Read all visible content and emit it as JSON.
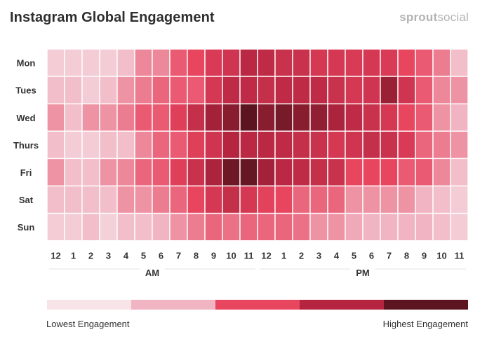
{
  "header": {
    "title": "Instagram Global Engagement",
    "brand_bold": "sprout",
    "brand_light": "social"
  },
  "chart_data": {
    "type": "heatmap",
    "title": "Instagram Global Engagement",
    "rows": [
      "Mon",
      "Tues",
      "Wed",
      "Thurs",
      "Fri",
      "Sat",
      "Sun"
    ],
    "columns": [
      "12",
      "1",
      "2",
      "3",
      "4",
      "5",
      "6",
      "7",
      "8",
      "9",
      "10",
      "11",
      "12",
      "1",
      "2",
      "3",
      "4",
      "5",
      "6",
      "7",
      "8",
      "9",
      "10",
      "11"
    ],
    "periods": [
      {
        "label": "AM",
        "from": 0,
        "to": 11
      },
      {
        "label": "PM",
        "from": 12,
        "to": 23
      }
    ],
    "scale": [
      "#f7e4e9",
      "#f0b4c2",
      "#e8455f",
      "#b52540",
      "#5c1520"
    ],
    "values": [
      [
        0.5,
        0.5,
        0.5,
        0.5,
        0.8,
        1.4,
        1.4,
        1.8,
        2.0,
        2.3,
        2.5,
        2.9,
        2.8,
        2.6,
        2.6,
        2.4,
        2.4,
        2.3,
        2.4,
        2.3,
        2.0,
        1.8,
        1.5,
        0.8
      ],
      [
        0.8,
        0.8,
        0.5,
        0.8,
        1.3,
        1.5,
        1.7,
        1.8,
        1.8,
        2.4,
        2.8,
        2.8,
        2.7,
        2.8,
        2.8,
        2.8,
        2.6,
        2.4,
        2.5,
        3.3,
        2.5,
        1.8,
        1.4,
        1.3
      ],
      [
        1.3,
        0.8,
        1.3,
        1.3,
        1.5,
        1.8,
        1.8,
        2.2,
        2.7,
        3.2,
        3.5,
        4.0,
        3.5,
        3.7,
        3.5,
        3.4,
        3.1,
        2.8,
        2.6,
        2.4,
        2.0,
        1.8,
        1.3,
        1.0
      ],
      [
        0.8,
        0.5,
        0.5,
        0.8,
        0.8,
        1.4,
        1.7,
        1.8,
        2.2,
        2.5,
        3.0,
        2.9,
        2.9,
        2.8,
        2.7,
        2.6,
        2.4,
        2.5,
        2.7,
        2.6,
        2.3,
        1.7,
        1.5,
        1.3
      ],
      [
        1.3,
        0.8,
        0.8,
        1.3,
        1.4,
        1.7,
        1.8,
        2.2,
        2.6,
        3.1,
        3.8,
        3.9,
        3.2,
        2.9,
        2.8,
        2.7,
        2.6,
        2.0,
        2.0,
        2.0,
        1.8,
        1.8,
        1.4,
        0.8
      ],
      [
        0.8,
        0.8,
        0.8,
        0.8,
        1.3,
        1.3,
        1.5,
        1.7,
        2.0,
        2.4,
        2.7,
        2.4,
        2.1,
        2.0,
        1.7,
        1.7,
        1.7,
        1.3,
        1.3,
        1.3,
        1.3,
        1.0,
        0.8,
        0.5
      ],
      [
        0.5,
        0.5,
        0.8,
        0.4,
        0.8,
        0.8,
        1.0,
        1.3,
        1.5,
        1.7,
        1.6,
        1.7,
        1.7,
        1.7,
        1.6,
        1.3,
        1.3,
        1.1,
        1.0,
        1.0,
        1.0,
        1.0,
        0.8,
        0.5
      ]
    ],
    "legend": {
      "low_label": "Lowest Engagement",
      "high_label": "Highest Engagement"
    }
  }
}
